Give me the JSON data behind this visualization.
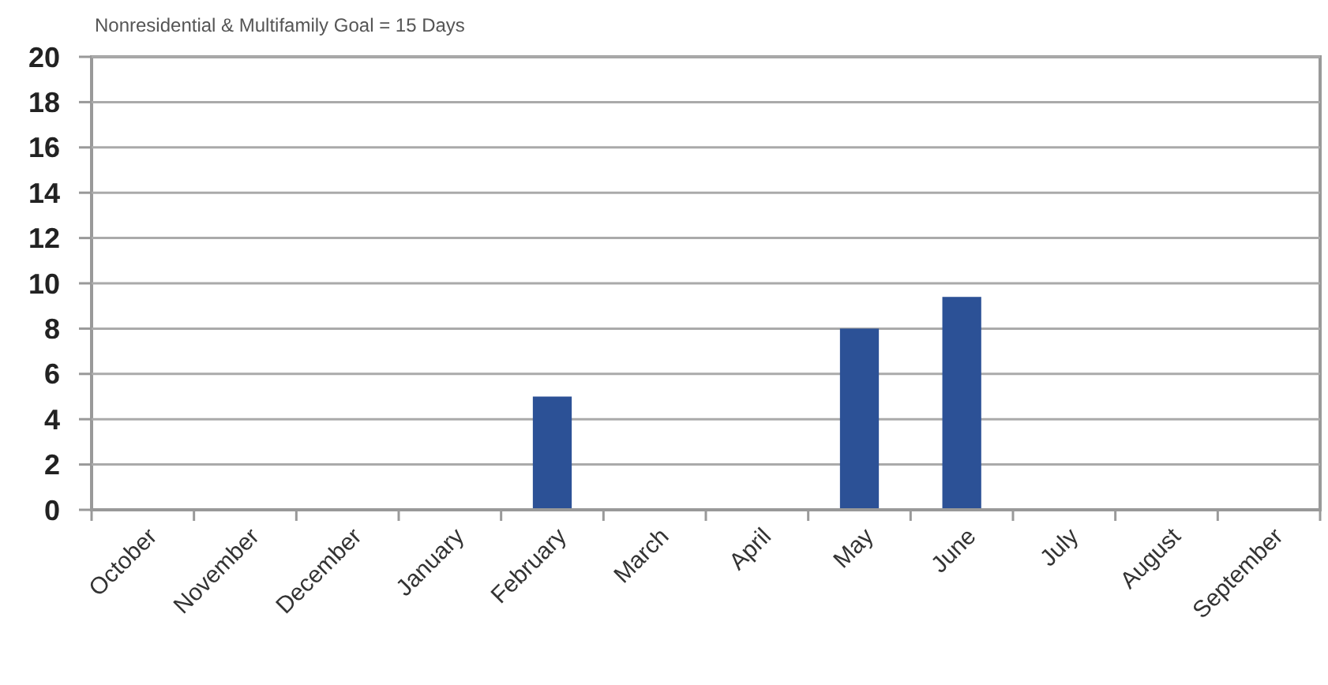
{
  "chart_data": {
    "type": "bar",
    "title": "Nonresidential & Multifamily Goal = 15 Days",
    "categories": [
      "October",
      "November",
      "December",
      "January",
      "February",
      "March",
      "April",
      "May",
      "June",
      "July",
      "August",
      "September"
    ],
    "values": [
      null,
      null,
      null,
      null,
      5,
      null,
      null,
      8,
      9.4,
      null,
      null,
      null
    ],
    "color": "#2c5196",
    "ylim": [
      0,
      20
    ],
    "yticks": [
      0,
      2,
      4,
      6,
      8,
      10,
      12,
      14,
      16,
      18,
      20
    ],
    "grid": "y"
  }
}
